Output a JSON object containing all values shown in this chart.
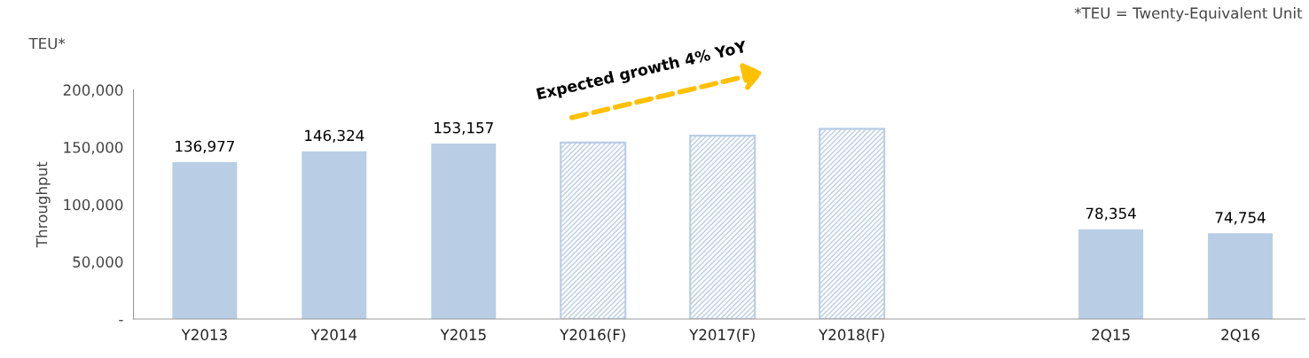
{
  "chart_data": {
    "type": "bar",
    "categories": [
      "Y2013",
      "Y2014",
      "Y2015",
      "Y2016(F)",
      "Y2017(F)",
      "Y2018(F)",
      null,
      "2Q15",
      "2Q16"
    ],
    "series": [
      {
        "color": "#b9cde5",
        "values": [
          136977,
          146324,
          153157,
          null,
          null,
          null,
          null,
          78354,
          74754
        ],
        "value_labels": [
          "136,977",
          "146,324",
          "153,157",
          null,
          null,
          null,
          null,
          "78,354",
          "74,754"
        ]
      },
      {
        "color": "#b9cde5",
        "values": [
          null,
          null,
          null,
          154000,
          160000,
          166000,
          null,
          null,
          null
        ]
      }
    ],
    "ylabel": "Throughput",
    "ylim": [
      0,
      200000
    ],
    "yticks": [
      {
        "value": 0,
        "label": "-"
      },
      {
        "value": 50000,
        "label": "50,000"
      },
      {
        "value": 100000,
        "label": "100,000"
      },
      {
        "value": 150000,
        "label": "150,000"
      },
      {
        "value": 200000,
        "label": "200,000"
      }
    ],
    "annotations": [
      "TEU*",
      "*TEU = Twenty-Equivalent Unit",
      "Expected growth 4% YoY"
    ],
    "grid": false,
    "legend": false
  }
}
